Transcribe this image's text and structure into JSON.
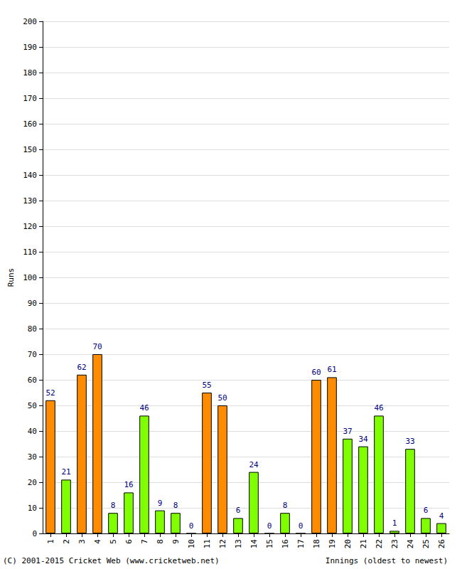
{
  "chart_data": {
    "type": "bar",
    "y_label": "Runs",
    "x_label": "Innings (oldest to newest)",
    "annotations": [
      "(C) 2001-2015 Cricket Web (www.cricketweb.net)"
    ],
    "categories": [
      "1",
      "2",
      "3",
      "4",
      "5",
      "6",
      "7",
      "8",
      "9",
      "10",
      "11",
      "12",
      "13",
      "14",
      "15",
      "16",
      "17",
      "18",
      "19",
      "20",
      "21",
      "22",
      "23",
      "24",
      "25",
      "26"
    ],
    "values": [
      52,
      21,
      62,
      70,
      8,
      16,
      46,
      9,
      8,
      0,
      55,
      50,
      6,
      24,
      0,
      8,
      0,
      60,
      61,
      37,
      34,
      46,
      1,
      33,
      6,
      4
    ],
    "colors": [
      "#ff8c00",
      "#80ff00",
      "#ff8c00",
      "#ff8c00",
      "#80ff00",
      "#80ff00",
      "#80ff00",
      "#80ff00",
      "#80ff00",
      "#80ff00",
      "#ff8c00",
      "#ff8c00",
      "#80ff00",
      "#80ff00",
      "#80ff00",
      "#80ff00",
      "#80ff00",
      "#ff8c00",
      "#ff8c00",
      "#80ff00",
      "#80ff00",
      "#80ff00",
      "#80ff00",
      "#80ff00",
      "#80ff00",
      "#80ff00"
    ],
    "ylim": [
      0,
      200
    ],
    "yticks": [
      0,
      10,
      20,
      30,
      40,
      50,
      60,
      70,
      80,
      90,
      100,
      110,
      120,
      130,
      140,
      150,
      160,
      170,
      180,
      190,
      200
    ],
    "grid": true,
    "data_labels": true
  }
}
